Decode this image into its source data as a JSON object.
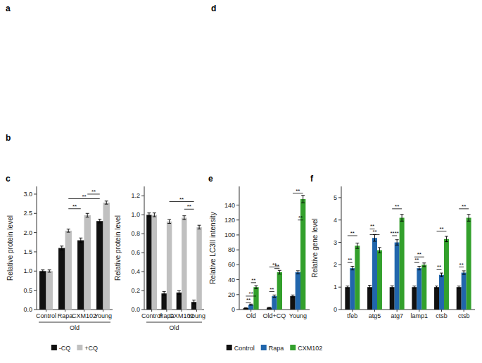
{
  "chart_data": [
    {
      "type": "bar",
      "title": "c",
      "y_label": "Relative protein level",
      "categories": [
        "Control",
        "Rapa",
        "CXM102",
        "Young"
      ],
      "series": [
        {
          "name": "-CQ",
          "color": "#111111",
          "values": [
            1.0,
            1.6,
            1.8,
            2.3
          ],
          "errors": [
            0.03,
            0.05,
            0.06,
            0.05
          ]
        },
        {
          "name": "+CQ",
          "color": "#c0c0c0",
          "values": [
            1.0,
            2.05,
            2.45,
            2.78
          ],
          "errors": [
            0.03,
            0.04,
            0.05,
            0.04
          ]
        }
      ],
      "ylim": [
        0,
        3.2
      ],
      "yticks": [
        {
          "value": 0,
          "label": "0.0"
        },
        0.5,
        {
          "value": 1,
          "label": "1.0"
        },
        1.5,
        {
          "value": 2,
          "label": "2.0"
        },
        2.5,
        {
          "value": 3,
          "label": "3.0"
        }
      ],
      "grid": false,
      "legend": "bottom",
      "annotations": [
        {
          "type": "panel_label",
          "text": "a"
        },
        {
          "type": "panel_label",
          "text": "b"
        },
        {
          "type": "panel_label",
          "text": "d"
        },
        {
          "type": "group_label",
          "text": "Old"
        },
        {
          "type": "bracket",
          "text": "**",
          "categories": [
            1,
            2
          ],
          "y": 2.62
        },
        {
          "type": "bracket",
          "text": "**",
          "categories": [
            1,
            3
          ],
          "y": 2.88
        },
        {
          "type": "bracket",
          "text": "**",
          "categories": [
            2,
            3
          ],
          "y": 3.0
        }
      ]
    },
    {
      "type": "bar",
      "y_label": "Relative protein level",
      "categories": [
        "Control",
        "Rapa",
        "CXM102",
        "Young"
      ],
      "series": [
        {
          "color": "#111111",
          "values": [
            1.0,
            0.17,
            0.18,
            0.08
          ],
          "errors": [
            0.02,
            0.02,
            0.02,
            0.02
          ]
        },
        {
          "color": "#c0c0c0",
          "values": [
            1.0,
            0.93,
            0.97,
            0.87
          ],
          "errors": [
            0.02,
            0.02,
            0.02,
            0.02
          ]
        }
      ],
      "ylim": [
        0,
        1.3
      ],
      "yticks": [
        {
          "value": 0,
          "label": "0.0"
        },
        0.2,
        0.4,
        0.6,
        0.8,
        {
          "value": 1,
          "label": "1.0"
        },
        1.2
      ],
      "grid": false,
      "annotations": [
        {
          "type": "group_label",
          "text": "Old"
        },
        {
          "type": "bracket",
          "text": "**",
          "categories": [
            2,
            3
          ],
          "y": 1.06
        },
        {
          "type": "bracket",
          "text": "**",
          "categories": [
            1,
            3
          ],
          "y": 1.14
        }
      ]
    },
    {
      "type": "bar",
      "title": "e",
      "y_label": "Relative LC3II intensity",
      "categories": [
        "Old",
        "Old+CQ",
        "Young"
      ],
      "series": [
        {
          "name": "Control",
          "color": "#111111",
          "values": [
            2.0,
            2.5,
            18.0
          ],
          "errors": [
            0.5,
            0.5,
            1.5
          ]
        },
        {
          "name": "Rapa",
          "color": "#2166ac",
          "values": [
            6.5,
            18.0,
            50.0
          ],
          "errors": [
            0.8,
            1.5,
            2.0
          ]
        },
        {
          "name": "CXM102",
          "color": "#33a02c",
          "values": [
            30.0,
            50.0,
            148.0
          ],
          "errors": [
            2.0,
            2.5,
            5.0
          ]
        }
      ],
      "ylim": [
        0,
        165
      ],
      "yticks": [
        0,
        20,
        40,
        60,
        80,
        100,
        120,
        140
      ],
      "grid": false,
      "legend": "bottom",
      "annotations": [
        {
          "type": "bracket",
          "text": "**",
          "category": 0,
          "series": [
            0,
            1
          ],
          "y": 9
        },
        {
          "type": "bracket",
          "text": "**",
          "category": 0,
          "series": [
            0,
            2
          ],
          "y": 18
        },
        {
          "type": "bracket",
          "text": "**",
          "category": 0,
          "series": [
            1,
            2
          ],
          "y": 36
        },
        {
          "type": "bracket",
          "text": "**",
          "category": 1,
          "series": [
            0,
            1
          ],
          "y": 24
        },
        {
          "type": "bracket",
          "text": "**",
          "category": 1,
          "series": [
            0,
            2
          ],
          "y": 57
        },
        {
          "type": "bracket",
          "text": "**",
          "category": 1,
          "series": [
            1,
            2
          ],
          "y": 55
        },
        {
          "type": "bracket",
          "text": "**",
          "category": 2,
          "series": [
            0,
            2
          ],
          "y": 156
        },
        {
          "type": "bracket",
          "text": "**",
          "category": 2,
          "series": [
            1,
            2
          ],
          "y": 120
        }
      ]
    },
    {
      "type": "bar",
      "title": "f",
      "y_label": "Relative gene level",
      "categories": [
        "tfeb",
        "atg5",
        "atg7",
        "lamp1",
        "ctsb",
        "ctsb"
      ],
      "series": [
        {
          "color": "#111111",
          "values": [
            1.0,
            1.0,
            1.0,
            1.0,
            1.0,
            1.0
          ],
          "errors": [
            0.05,
            0.08,
            0.06,
            0.05,
            0.05,
            0.05
          ]
        },
        {
          "color": "#2166ac",
          "values": [
            1.85,
            3.2,
            3.0,
            1.85,
            1.55,
            1.65
          ],
          "errors": [
            0.08,
            0.15,
            0.12,
            0.08,
            0.08,
            0.08
          ]
        },
        {
          "color": "#33a02c",
          "values": [
            2.85,
            2.65,
            4.1,
            2.0,
            3.15,
            4.1
          ],
          "errors": [
            0.12,
            0.12,
            0.15,
            0.08,
            0.12,
            0.15
          ]
        }
      ],
      "ylim": [
        0,
        5.5
      ],
      "yticks": [
        0,
        1,
        2,
        3,
        4,
        5
      ],
      "grid": false,
      "annotations": [
        {
          "type": "bracket",
          "text": "**",
          "category": 0,
          "series": [
            0,
            1
          ],
          "y": 2.1
        },
        {
          "type": "bracket",
          "text": "**",
          "category": 0,
          "series": [
            0,
            2
          ],
          "y": 3.3
        },
        {
          "type": "bracket",
          "text": "**",
          "category": 1,
          "series": [
            0,
            1
          ],
          "y": 3.6
        },
        {
          "type": "bracket",
          "text": "**",
          "category": 1,
          "series": [
            0,
            2
          ],
          "y": 3.35
        },
        {
          "type": "bracket",
          "text": "****",
          "category": 2,
          "series": [
            0,
            1
          ],
          "y": 3.3
        },
        {
          "type": "bracket",
          "text": "**",
          "category": 2,
          "series": [
            0,
            2
          ],
          "y": 4.5
        },
        {
          "type": "bracket",
          "text": "**",
          "category": 3,
          "series": [
            0,
            1
          ],
          "y": 2.1
        },
        {
          "type": "bracket",
          "text": "**",
          "category": 3,
          "series": [
            0,
            2
          ],
          "y": 2.35
        },
        {
          "type": "bracket",
          "text": "**",
          "category": 4,
          "series": [
            0,
            1
          ],
          "y": 1.78
        },
        {
          "type": "bracket",
          "text": "**",
          "category": 4,
          "series": [
            0,
            2
          ],
          "y": 3.5
        },
        {
          "type": "bracket",
          "text": "**",
          "category": 5,
          "series": [
            0,
            1
          ],
          "y": 1.9
        },
        {
          "type": "bracket",
          "text": "**",
          "category": 5,
          "series": [
            0,
            2
          ],
          "y": 4.5
        }
      ]
    }
  ]
}
